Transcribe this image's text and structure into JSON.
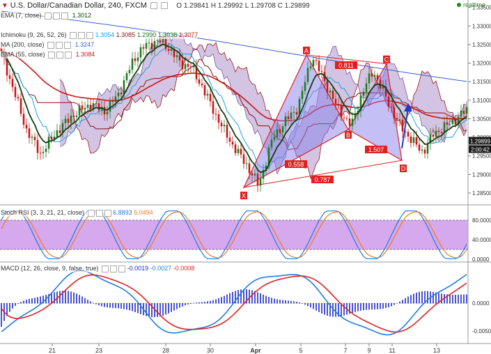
{
  "header": {
    "title": "U.S. Dollar/Canadian Dollar, 240, FXCM",
    "ohlc": "O 1.29841  H 1.29992  L 1.29708  C 1.29899",
    "realtime": "realtime"
  },
  "indicators": {
    "ema7": {
      "label": "EMA (7, close)",
      "value": "1.3012"
    },
    "ichimoku": {
      "label": "Ichimoku (9, 26, 52, 26)",
      "v1": "1.3054",
      "v2": "1.3085",
      "v3": "1.2990",
      "v4": "1.3038",
      "v5": "1.3077"
    },
    "ma200": {
      "label": "MA (200, close)",
      "value": "1.3247"
    },
    "ema55": {
      "label": "EMA (55, close)",
      "value": "1.3084"
    }
  },
  "stoch": {
    "label": "Stoch RSI (3, 3, 21, 21, close)",
    "k": "6.8893",
    "d": "5.0494",
    "ticks": [
      "80.0000",
      "40.0000",
      "0.0000"
    ]
  },
  "macd": {
    "label": "MACD (12, 26, close, 9, false, true)",
    "hist": "-0.0019",
    "macd": "-0.0027",
    "signal": "-0.0008",
    "ticks": [
      "0.0000",
      "-0.0050"
    ]
  },
  "price_axis": {
    "ticks": [
      "1.33500",
      "1.33000",
      "1.32500",
      "1.32000",
      "1.31500",
      "1.31000",
      "1.30500",
      "1.30000",
      "1.29500",
      "1.29000",
      "1.28500"
    ],
    "last_price": "1.29899",
    "countdown": "2:00:42"
  },
  "x_axis": {
    "labels": [
      "21",
      "23",
      "28",
      "30",
      "Apr",
      "5",
      "7",
      "9",
      "11",
      "13"
    ]
  },
  "pattern": {
    "points": [
      "X",
      "A",
      "B",
      "C",
      "D"
    ],
    "ratios": [
      "0.811",
      "1.507",
      "0.558",
      "0.787"
    ]
  },
  "colors": {
    "bull": "#1e7a1e",
    "bear": "#c81414",
    "ema7": "#0f3d0f",
    "ema55": "#d01010",
    "ma200": "#3a5fd0",
    "tenkan": "#1aa0e6",
    "kijun": "#8b1010",
    "cloud": "#9b7dbf",
    "pattern_fill": "#8a80ea",
    "pattern_line": "#e02020",
    "projection": "#1a3dd0",
    "stoch_band": "#c88be8",
    "stoch_k": "#1f7be0",
    "stoch_d": "#f07a20",
    "macd_line": "#1f7be0",
    "signal_line": "#e02020",
    "macd_hist": "#1a28c8"
  },
  "chart_data": {
    "type": "candlestick",
    "title": "U.S. Dollar/Canadian Dollar, 240, FXCM",
    "x_labels": [
      "21",
      "23",
      "28",
      "30",
      "Apr",
      "5",
      "7",
      "9",
      "11",
      "13"
    ],
    "ylim": [
      1.282,
      1.337
    ],
    "harmonic_pattern": {
      "X": 1.2865,
      "A": 1.3222,
      "B": 1.3021,
      "C": 1.3198,
      "D": 1.2938,
      "ratio_XA_B": 0.558,
      "ratio_AB_C": 0.811,
      "ratio_BC_D": 1.507,
      "ratio_XA_D": 0.787
    },
    "last_close": 1.29899,
    "stoch_rsi": {
      "k": 6.8893,
      "d": 5.0494,
      "levels": [
        80,
        40,
        0
      ]
    },
    "macd": {
      "histogram": -0.0019,
      "macd": -0.0027,
      "signal": -0.0008
    }
  }
}
